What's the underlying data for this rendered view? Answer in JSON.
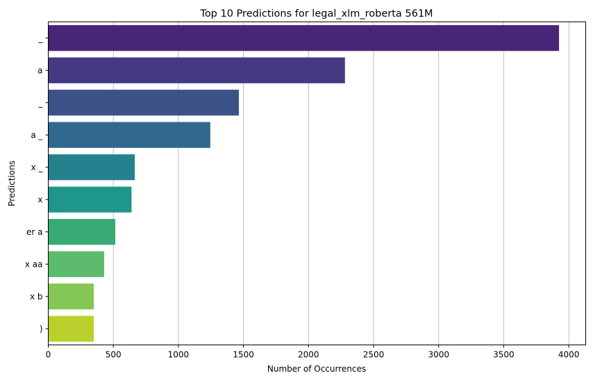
{
  "chart_data": {
    "type": "bar",
    "orientation": "horizontal",
    "title": "Top 10 Predictions for legal_xlm_roberta 561M",
    "xlabel": "Number of Occurrences",
    "ylabel": "Predictions",
    "categories": [
      "_",
      "a",
      "_",
      "a _",
      "x _",
      "x",
      "er a",
      "x aa",
      "x b",
      ")"
    ],
    "values": [
      3925,
      2280,
      1465,
      1245,
      665,
      640,
      515,
      430,
      350,
      350
    ],
    "xlim": [
      0,
      4130
    ],
    "xticks": [
      0,
      500,
      1000,
      1500,
      2000,
      2500,
      3000,
      3500,
      4000
    ],
    "grid": "x",
    "colormap": "viridis",
    "colors": [
      "#482576",
      "#443983",
      "#3B5289",
      "#31688E",
      "#26818E",
      "#1F968B",
      "#38AA74",
      "#5DBB6E",
      "#85C754",
      "#B9D02C"
    ]
  }
}
